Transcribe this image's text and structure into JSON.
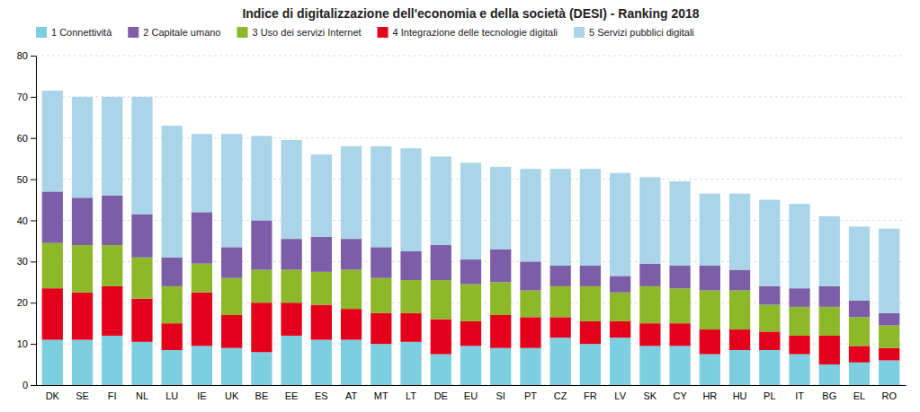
{
  "chart_data": {
    "type": "bar",
    "title": "Indice di digitalizzazione dell'economia e della società (DESI) - Ranking 2018",
    "categories": [
      "DK",
      "SE",
      "FI",
      "NL",
      "LU",
      "IE",
      "UK",
      "BE",
      "EE",
      "ES",
      "AT",
      "MT",
      "LT",
      "DE",
      "EU",
      "SI",
      "PT",
      "CZ",
      "FR",
      "LV",
      "SK",
      "CY",
      "HR",
      "HU",
      "PL",
      "IT",
      "BG",
      "EL",
      "RO"
    ],
    "series": [
      {
        "name": "1 Connettività",
        "color": "#7dcfe0",
        "values": [
          11.0,
          11.0,
          12.0,
          10.5,
          8.5,
          9.5,
          9.0,
          8.0,
          12.0,
          11.0,
          11.0,
          10.0,
          10.5,
          7.5,
          9.5,
          9.0,
          9.0,
          11.5,
          10.0,
          11.5,
          9.5,
          9.5,
          7.5,
          8.5,
          8.5,
          7.5,
          5.0,
          5.5,
          6.0
        ]
      },
      {
        "name": "4 Integrazione delle tecnologie digitali",
        "color": "#e4001b",
        "values": [
          12.5,
          11.5,
          12.0,
          10.5,
          6.5,
          13.0,
          8.0,
          12.0,
          8.0,
          8.5,
          7.5,
          7.5,
          7.0,
          8.5,
          6.0,
          8.0,
          7.5,
          5.0,
          5.5,
          4.0,
          5.5,
          5.5,
          6.0,
          5.0,
          4.5,
          4.5,
          7.0,
          4.0,
          3.0
        ]
      },
      {
        "name": "3 Uso dei servizi Internet",
        "color": "#8db82a",
        "values": [
          11.0,
          11.5,
          10.0,
          10.0,
          9.0,
          7.0,
          9.0,
          8.0,
          8.0,
          8.0,
          9.5,
          8.5,
          8.0,
          9.5,
          9.0,
          8.0,
          6.5,
          7.5,
          8.5,
          7.0,
          9.0,
          8.5,
          9.5,
          9.5,
          6.5,
          7.0,
          7.0,
          7.0,
          5.5
        ]
      },
      {
        "name": "2 Capitale umano",
        "color": "#7b5ea7",
        "values": [
          12.5,
          11.5,
          12.0,
          10.5,
          7.0,
          12.5,
          7.5,
          12.0,
          7.5,
          8.5,
          7.5,
          7.5,
          7.0,
          8.5,
          6.0,
          8.0,
          7.0,
          5.0,
          5.0,
          4.0,
          5.5,
          5.5,
          6.0,
          5.0,
          4.5,
          4.5,
          5.0,
          4.0,
          3.0
        ]
      },
      {
        "name": "5 Servizi pubblici digitali",
        "color": "#aad4e8",
        "values": [
          24.5,
          24.5,
          24.0,
          28.5,
          32.0,
          19.0,
          27.5,
          20.5,
          24.0,
          20.0,
          22.5,
          24.5,
          25.0,
          21.5,
          23.5,
          20.0,
          22.5,
          23.5,
          23.5,
          25.0,
          21.0,
          20.5,
          17.5,
          18.5,
          21.0,
          20.5,
          17.0,
          18.0,
          20.5
        ]
      }
    ],
    "stacked": true,
    "ylim": [
      0,
      80
    ],
    "yticks": [
      0,
      10,
      20,
      30,
      40,
      50,
      60,
      70,
      80
    ],
    "grid": true,
    "legend": "upper left"
  }
}
